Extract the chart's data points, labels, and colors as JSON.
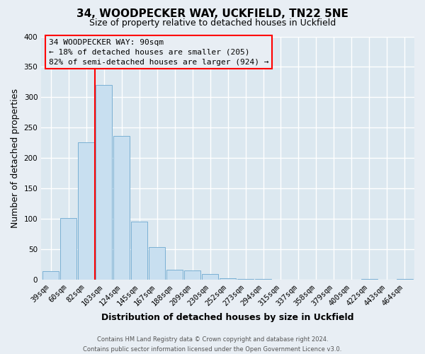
{
  "title": "34, WOODPECKER WAY, UCKFIELD, TN22 5NE",
  "subtitle": "Size of property relative to detached houses in Uckfield",
  "xlabel": "Distribution of detached houses by size in Uckfield",
  "ylabel": "Number of detached properties",
  "bar_color": "#c8dff0",
  "bar_edge_color": "#7ab0d4",
  "categories": [
    "39sqm",
    "60sqm",
    "82sqm",
    "103sqm",
    "124sqm",
    "145sqm",
    "167sqm",
    "188sqm",
    "209sqm",
    "230sqm",
    "252sqm",
    "273sqm",
    "294sqm",
    "315sqm",
    "337sqm",
    "358sqm",
    "379sqm",
    "400sqm",
    "422sqm",
    "443sqm",
    "464sqm"
  ],
  "values": [
    14,
    102,
    226,
    320,
    237,
    96,
    54,
    17,
    15,
    9,
    2,
    1,
    1,
    0,
    0,
    0,
    0,
    0,
    1,
    0,
    1
  ],
  "ylim": [
    0,
    400
  ],
  "yticks": [
    0,
    50,
    100,
    150,
    200,
    250,
    300,
    350,
    400
  ],
  "annotation_title": "34 WOODPECKER WAY: 90sqm",
  "annotation_line1": "← 18% of detached houses are smaller (205)",
  "annotation_line2": "82% of semi-detached houses are larger (924) →",
  "footer_line1": "Contains HM Land Registry data © Crown copyright and database right 2024.",
  "footer_line2": "Contains public sector information licensed under the Open Government Licence v3.0.",
  "background_color": "#e8eef4",
  "plot_bg_color": "#dce8f0",
  "grid_color": "#ffffff",
  "red_line_x": 2.5,
  "title_fontsize": 11,
  "subtitle_fontsize": 9,
  "axis_label_fontsize": 9,
  "tick_fontsize": 7.5,
  "annotation_fontsize": 8,
  "footer_fontsize": 6
}
